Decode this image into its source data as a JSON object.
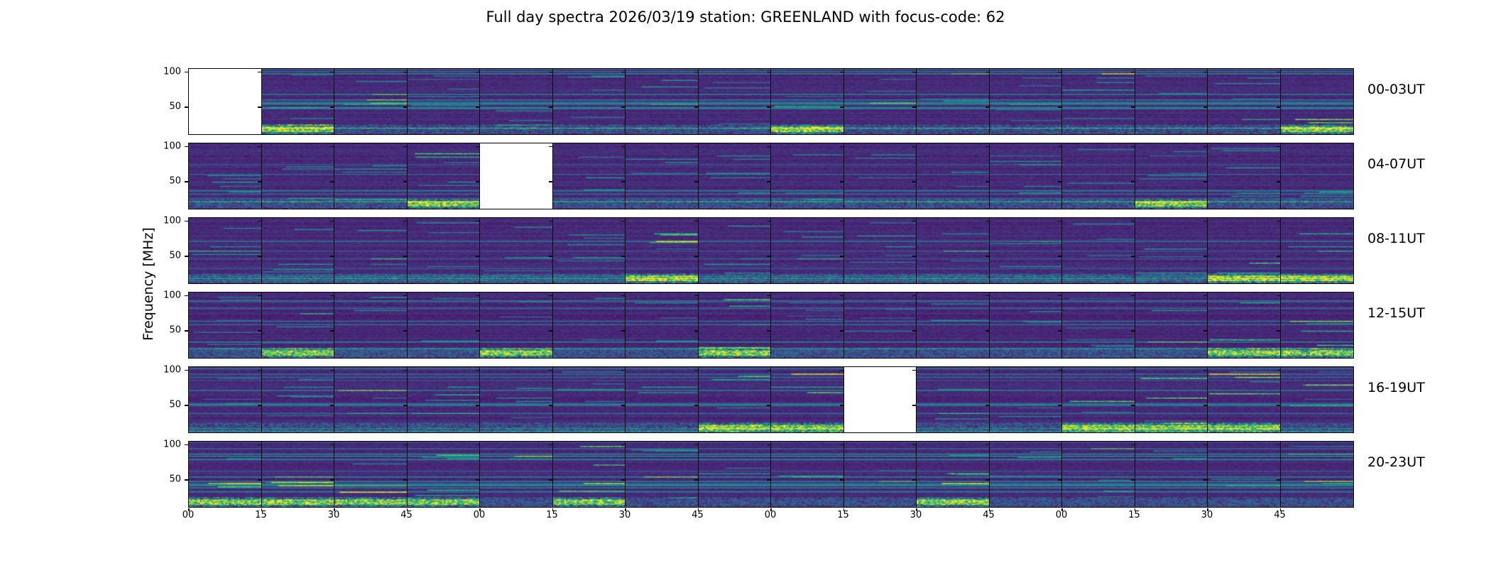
{
  "chart_data": {
    "type": "heatmap",
    "title": "Full day spectra 2026/03/19 station: GREENLAND with focus-code: 62",
    "ylabel": "Frequency [MHz]",
    "xlabel": "",
    "ylim": [
      10,
      105
    ],
    "yticks": [
      "100",
      "50"
    ],
    "ytick_values": [
      100,
      50
    ],
    "xticks": [
      "00",
      "15",
      "30",
      "45",
      "00",
      "15",
      "30",
      "45",
      "00",
      "15",
      "30",
      "45",
      "00",
      "15",
      "30",
      "45"
    ],
    "colormap": "viridis",
    "rows": [
      {
        "label": "00-03UT",
        "missing_panels": [
          0
        ],
        "bright_panels": [
          1,
          8,
          15
        ]
      },
      {
        "label": "04-07UT",
        "missing_panels": [
          4
        ],
        "bright_panels": [
          3,
          13
        ]
      },
      {
        "label": "08-11UT",
        "missing_panels": [],
        "bright_panels": [
          6,
          14,
          15
        ]
      },
      {
        "label": "12-15UT",
        "missing_panels": [],
        "bright_panels": [
          1,
          4,
          7,
          14,
          15
        ]
      },
      {
        "label": "16-19UT",
        "missing_panels": [
          9
        ],
        "bright_panels": [
          7,
          8,
          12,
          13,
          14
        ]
      },
      {
        "label": "20-23UT",
        "missing_panels": [],
        "bright_panels": [
          0,
          1,
          2,
          3,
          5,
          10
        ]
      }
    ],
    "panels_per_row": 16,
    "panel_minutes": 15
  }
}
